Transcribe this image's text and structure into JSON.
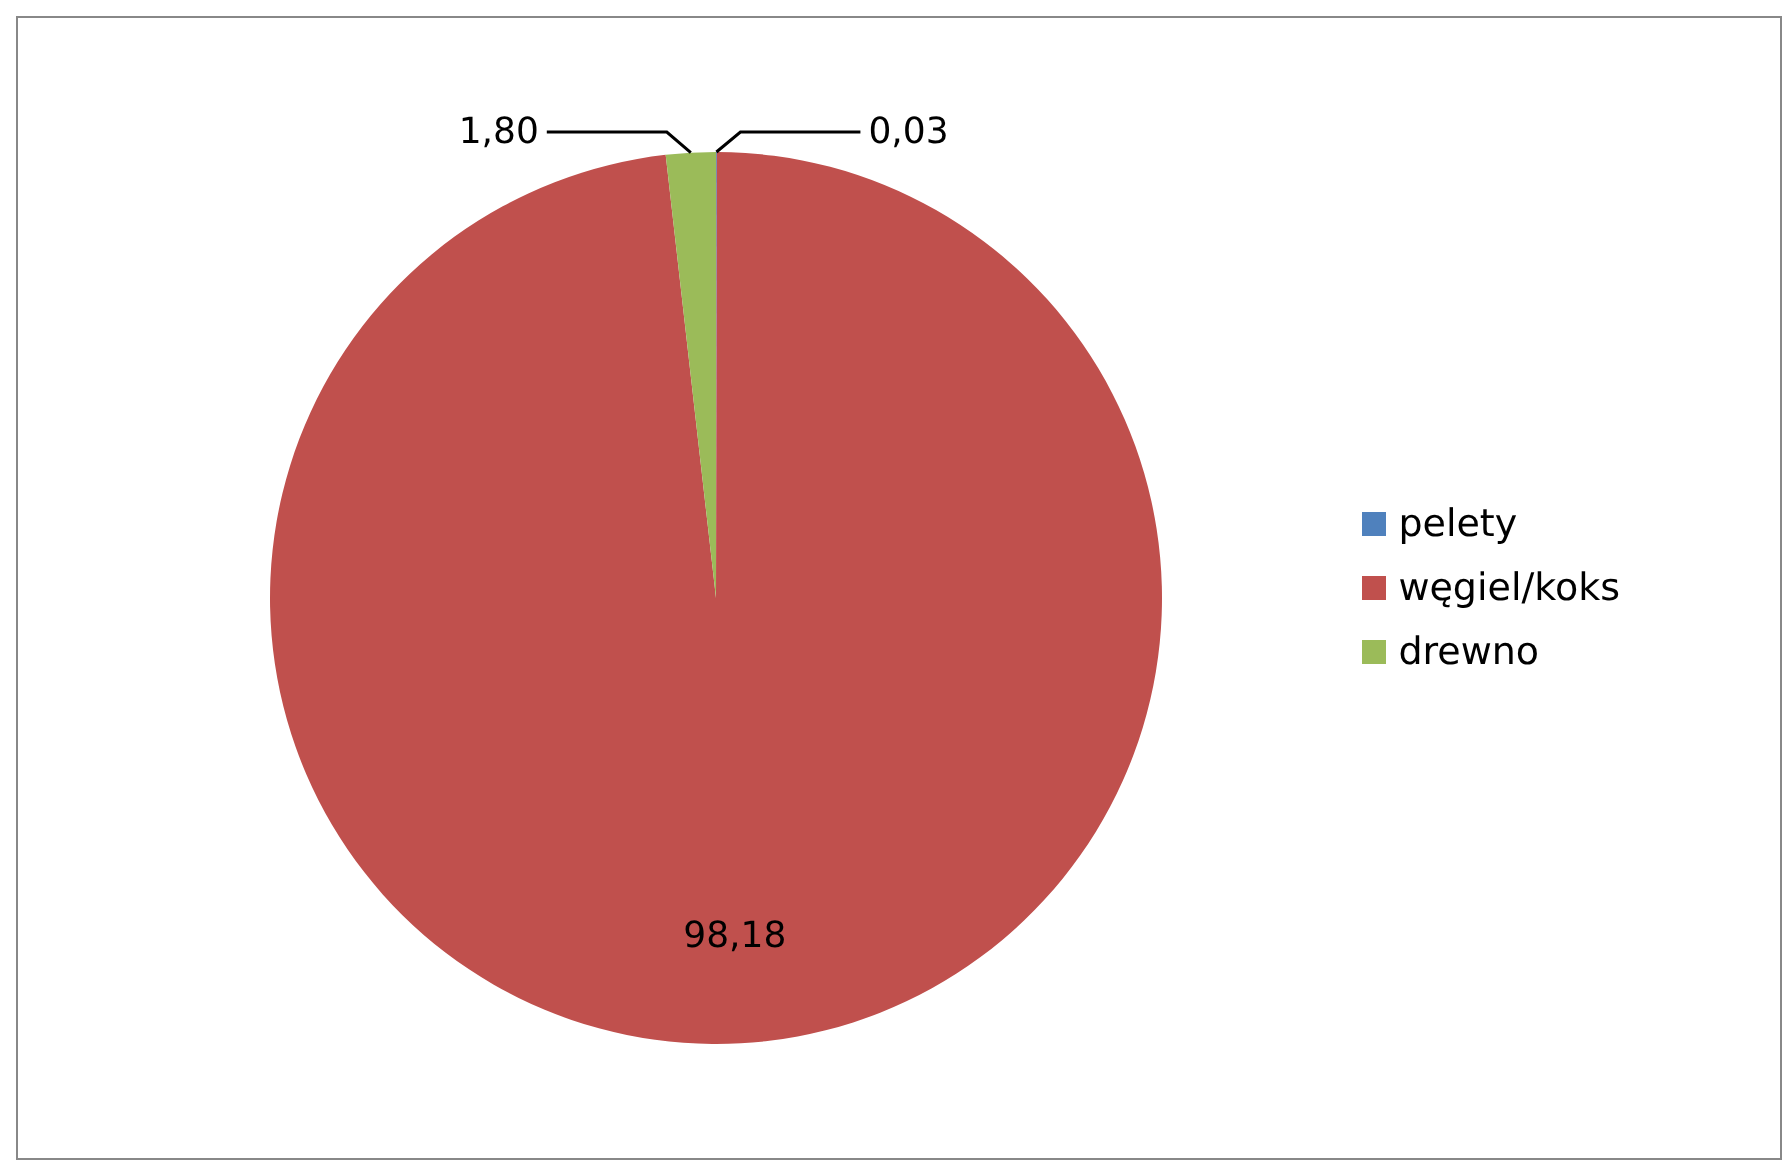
{
  "chart_data": {
    "type": "pie",
    "categories": [
      "pelety",
      "węgiel/koks",
      "drewno"
    ],
    "values": [
      0.03,
      98.18,
      1.8
    ],
    "value_labels": [
      "0,03",
      "98,18",
      "1,80"
    ],
    "colors": [
      "#4f81bd",
      "#c0504d",
      "#9bbb59"
    ],
    "legend": "right"
  }
}
